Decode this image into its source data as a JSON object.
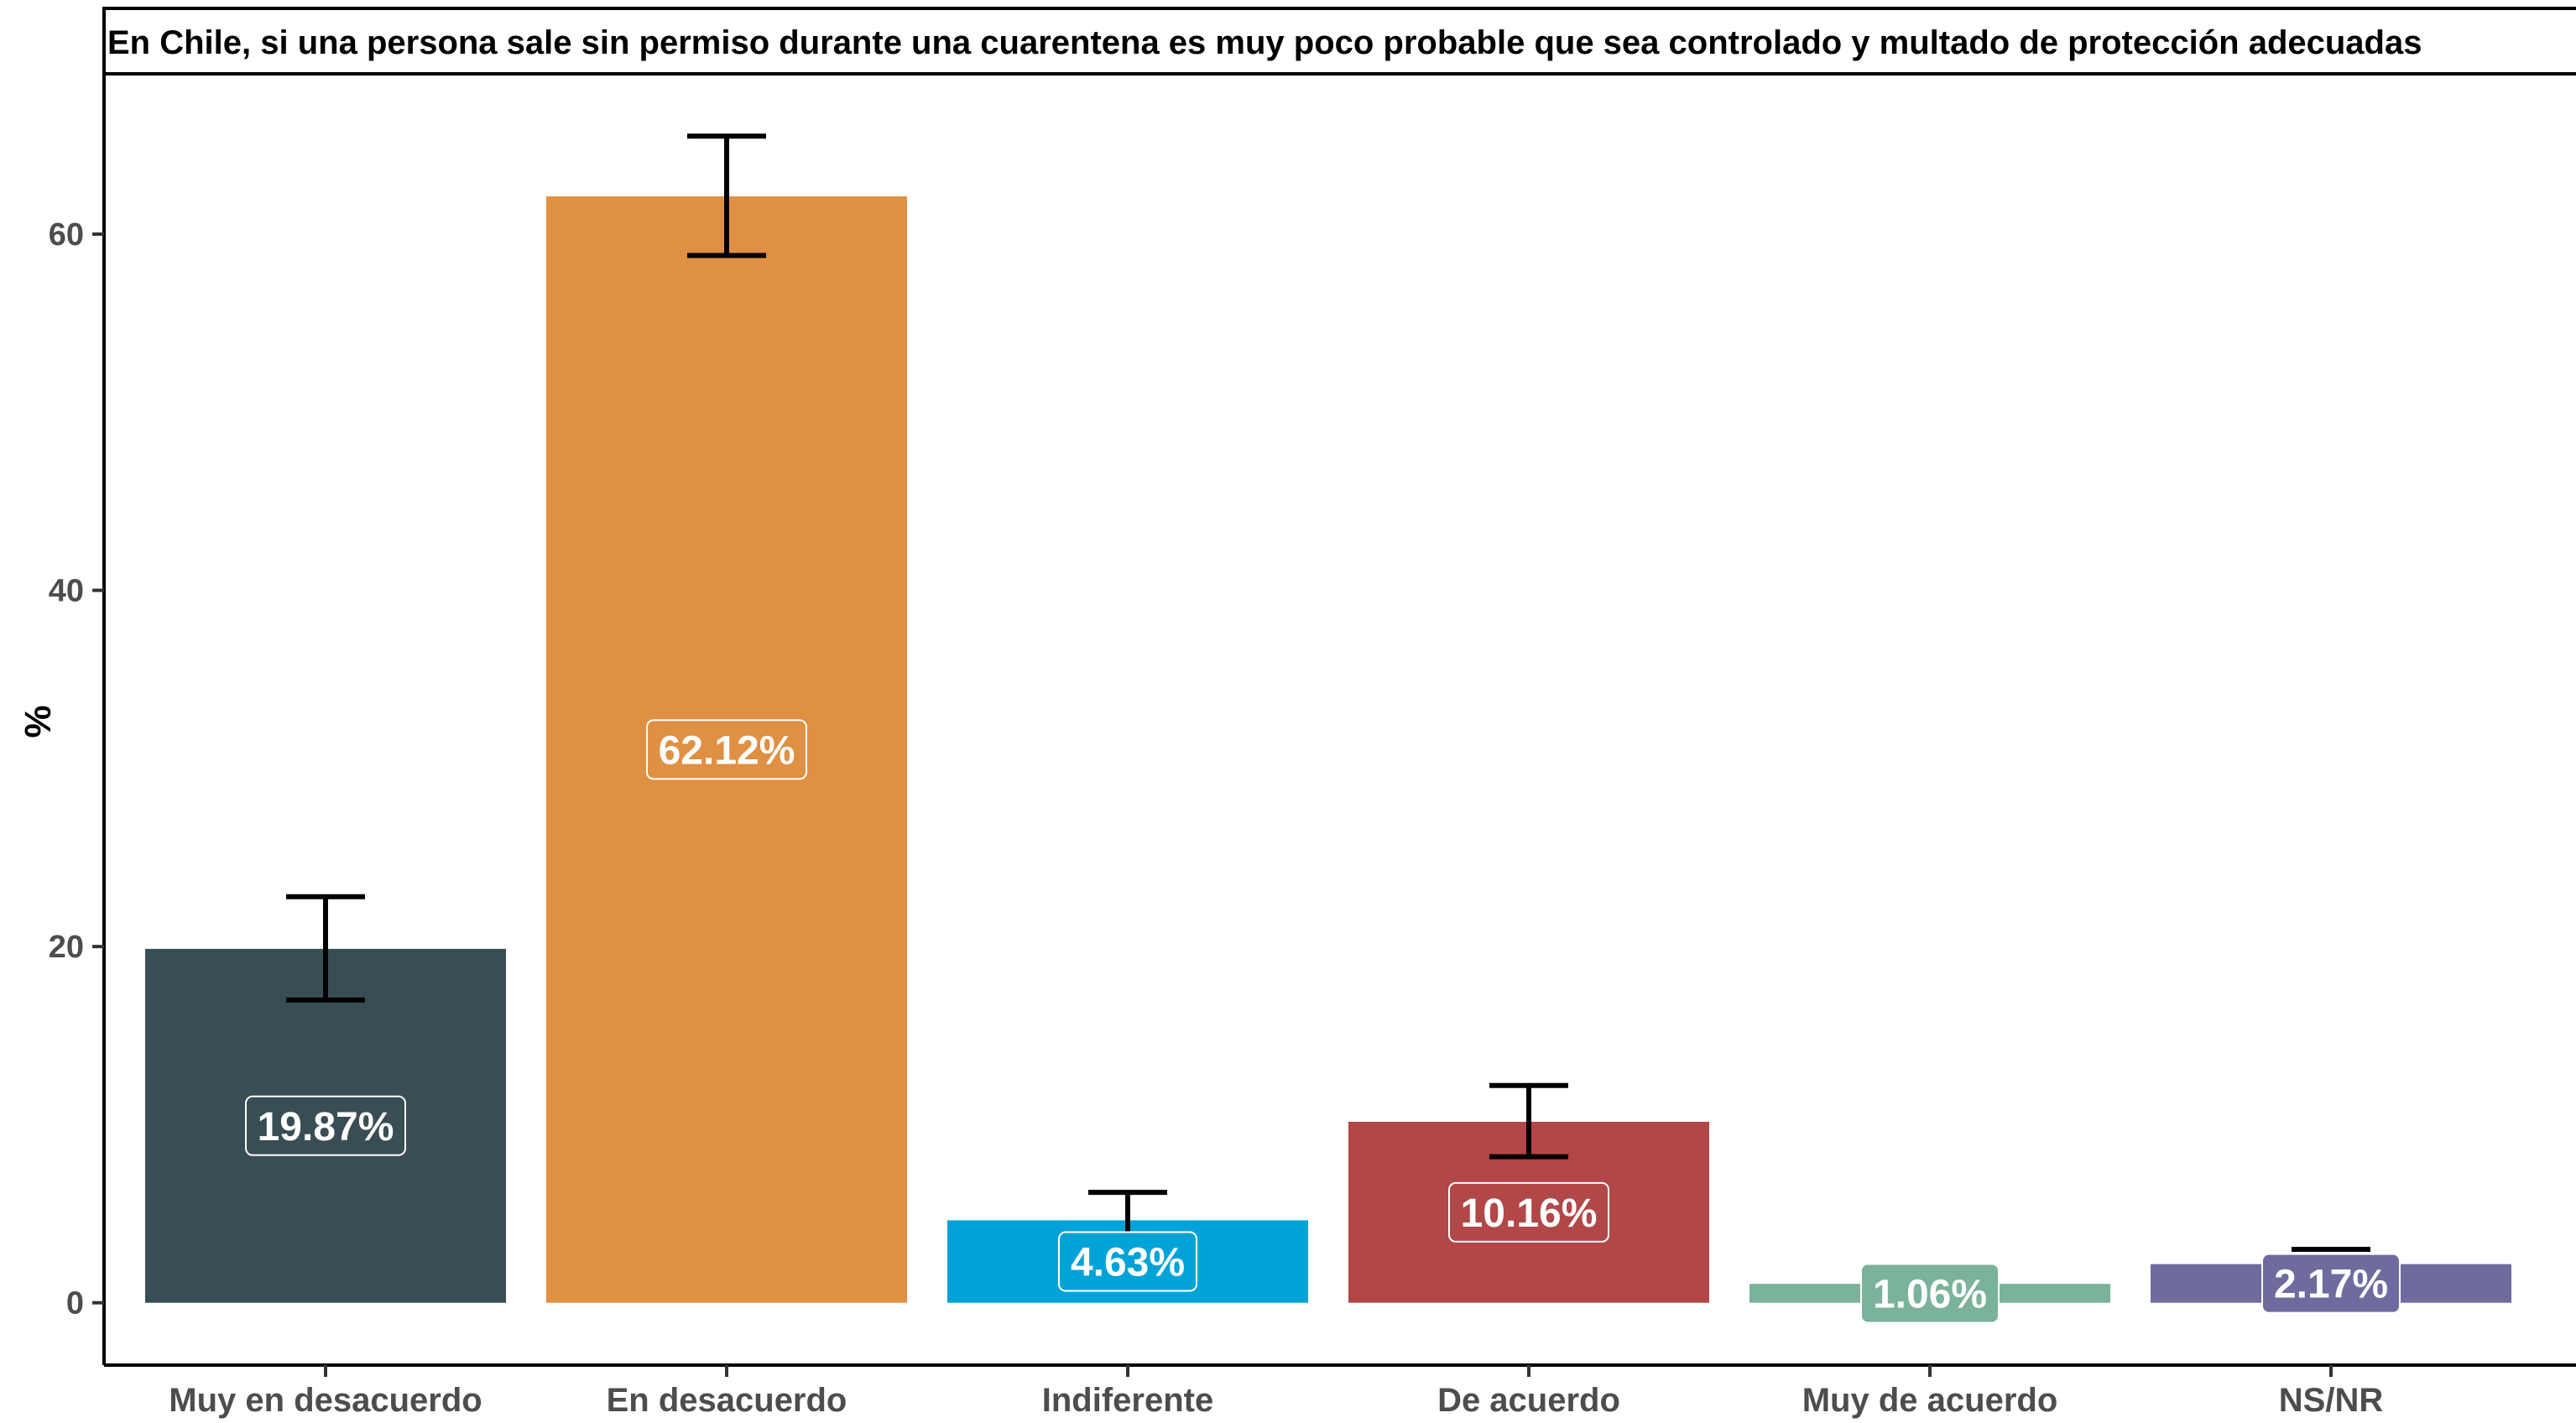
{
  "chart_data": {
    "type": "bar",
    "title": "En Chile, si una persona sale sin permiso durante una cuarentena es muy poco probable que sea controlado y multado de protección adecuadas",
    "ylabel": "%",
    "xlabel": "",
    "ylim": [
      -3.5,
      69
    ],
    "yticks": [
      0,
      20,
      40,
      60
    ],
    "ytick_labels": [
      "0",
      "20",
      "40",
      "60"
    ],
    "grid": false,
    "legend": "none",
    "categories": [
      "Muy en desacuerdo",
      "En desacuerdo",
      "Indiferente",
      "De acuerdo",
      "Muy de acuerdo",
      "NS/NR"
    ],
    "values": [
      19.87,
      62.12,
      4.63,
      10.16,
      1.06,
      2.17
    ],
    "labels": [
      "19.87%",
      "62.12%",
      "4.63%",
      "10.16%",
      "1.06%",
      "2.17%"
    ],
    "error_low": [
      17.0,
      58.8,
      3.4,
      8.2,
      null,
      null
    ],
    "error_high": [
      22.8,
      65.5,
      6.2,
      12.2,
      null,
      3.0
    ],
    "colors": [
      "#384e54",
      "#df9043",
      "#00a3d8",
      "#b24747",
      "#7ab29a",
      "#6e6b9e"
    ]
  }
}
